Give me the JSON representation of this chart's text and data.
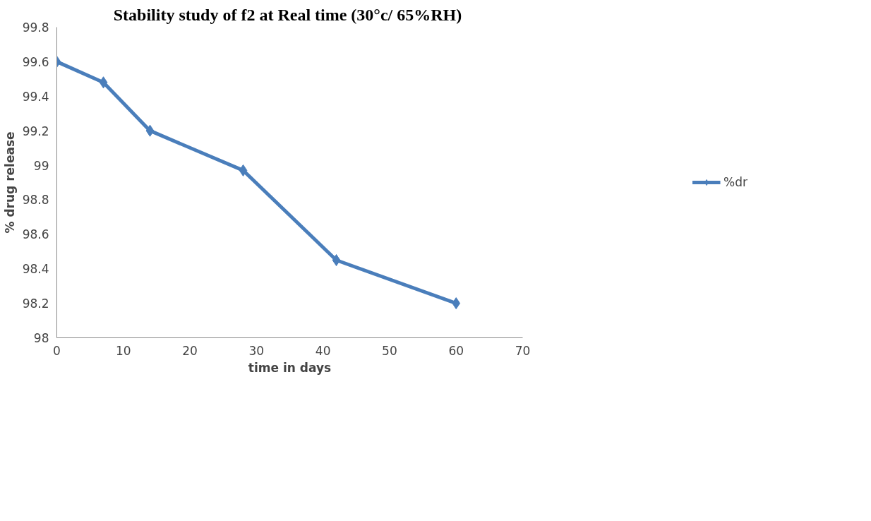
{
  "chart_data": {
    "type": "line",
    "title": "Stability  study of f2 at Real time (30°c/ 65%RH)",
    "xlabel": "time in days",
    "ylabel": "% drug release",
    "x": [
      0,
      7,
      14,
      28,
      42,
      60
    ],
    "series": [
      {
        "name": "%dr",
        "color": "#4a7ebb",
        "values": [
          99.6,
          99.48,
          99.2,
          98.97,
          98.45,
          98.2
        ]
      }
    ],
    "xlim": [
      0,
      70
    ],
    "xticks": [
      0,
      10,
      20,
      30,
      40,
      50,
      60,
      70
    ],
    "ylim": [
      98,
      99.8
    ],
    "yticks": [
      98,
      98.2,
      98.4,
      98.6,
      98.8,
      99,
      99.2,
      99.4,
      99.6,
      99.8
    ],
    "grid": false,
    "legend": "right",
    "marker": "diamond",
    "line_style": "solid"
  }
}
